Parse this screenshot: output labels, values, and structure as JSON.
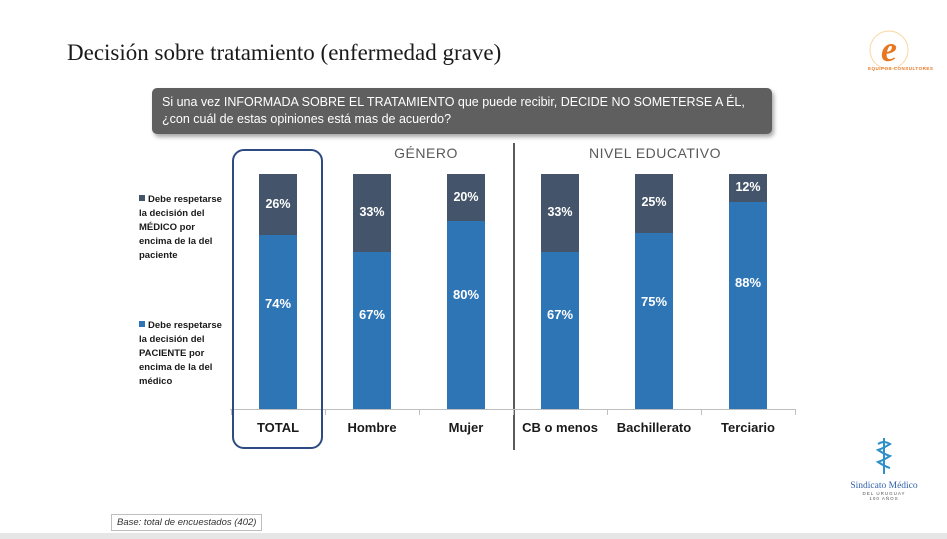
{
  "title": "Decisión sobre tratamiento (enfermedad grave)",
  "question": {
    "line1": "Si una vez INFORMADA SOBRE EL TRATAMIENTO que puede recibir, DECIDE NO SOMETERSE A ÉL,",
    "line2": "¿con cuál de estas opiniones está mas de acuerdo?"
  },
  "groups": {
    "genero": "GÉNERO",
    "nivel_educativo": "NIVEL EDUCATIVO"
  },
  "chart_data": {
    "type": "bar",
    "stacked": true,
    "categories": [
      "TOTAL",
      "Hombre",
      "Mujer",
      "CB o menos",
      "Bachillerato",
      "Terciario"
    ],
    "series": [
      {
        "name": "Debe respetarse la decisión del PACIENTE por encima de la del médico",
        "values": [
          74,
          67,
          80,
          67,
          75,
          88
        ],
        "labels": [
          "74%",
          "67%",
          "80%",
          "67%",
          "75%",
          "88%"
        ],
        "color": "#2e75b6"
      },
      {
        "name": "Debe respetarse la decisión del MÉDICO por encima de la del paciente",
        "values": [
          26,
          33,
          20,
          33,
          25,
          12
        ],
        "labels": [
          "26%",
          "33%",
          "20%",
          "33%",
          "25%",
          "12%"
        ],
        "color": "#44546a"
      }
    ],
    "ylim": [
      0,
      100
    ],
    "legend_position": "left",
    "grid": false
  },
  "legend": {
    "medico_lines": [
      "Debe respetarse",
      "la decisión del",
      "MÉDICO por",
      "encima de la del",
      "paciente"
    ],
    "paciente_lines": [
      "Debe respetarse",
      "la decisión del",
      "PACIENTE por",
      "encima de la del",
      "médico"
    ]
  },
  "base_note": "Base: total de encuestados (402)",
  "logos": {
    "equipos": "e",
    "equipos_text": "EQUIPOS CONSULTORES",
    "smu_name": "Sindicato Médico",
    "smu_sub": "DEL URUGUAY",
    "smu_years": "100 AÑOS"
  },
  "colors": {
    "paciente": "#2e75b6",
    "medico": "#44546a",
    "highlight_box": "#2e4a82",
    "question_bg": "#5f5f5f"
  }
}
